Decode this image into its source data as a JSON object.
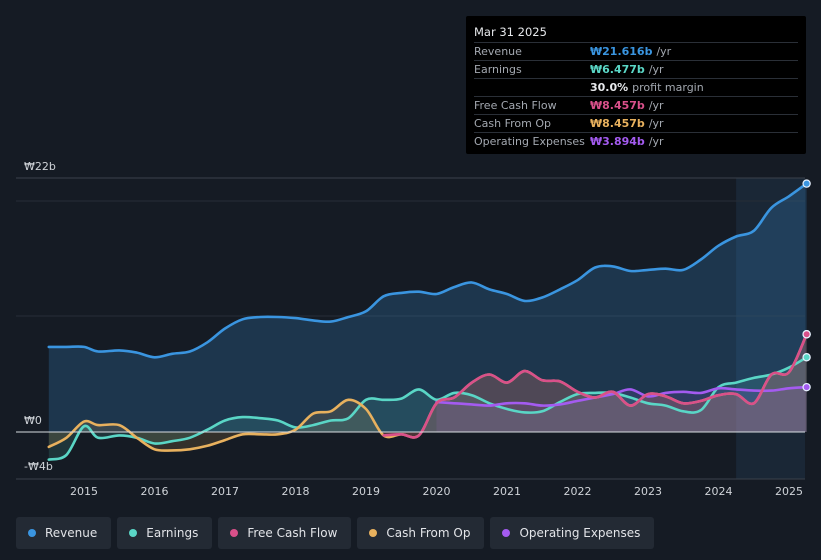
{
  "colors": {
    "revenue": "#3a95e0",
    "earnings": "#5ad6c6",
    "free_cash_flow": "#d9508a",
    "cash_from_op": "#e8b15e",
    "operating_expenses": "#a45bf0",
    "background": "#151b24",
    "grid": "#3a414b"
  },
  "tooltip": {
    "date": "Mar 31 2025",
    "revenue": {
      "label": "Revenue",
      "value": "₩21.616b",
      "unit": "/yr"
    },
    "earnings": {
      "label": "Earnings",
      "value": "₩6.477b",
      "unit": "/yr"
    },
    "margin": {
      "value": "30.0%",
      "text": "profit margin"
    },
    "fcf": {
      "label": "Free Cash Flow",
      "value": "₩8.457b",
      "unit": "/yr"
    },
    "cfo": {
      "label": "Cash From Op",
      "value": "₩8.457b",
      "unit": "/yr"
    },
    "opex": {
      "label": "Operating Expenses",
      "value": "₩3.894b",
      "unit": "/yr"
    }
  },
  "legend": [
    {
      "label": "Revenue",
      "color_key": "revenue",
      "name": "legend-revenue"
    },
    {
      "label": "Earnings",
      "color_key": "earnings",
      "name": "legend-earnings"
    },
    {
      "label": "Free Cash Flow",
      "color_key": "free_cash_flow",
      "name": "legend-free-cash-flow"
    },
    {
      "label": "Cash From Op",
      "color_key": "cash_from_op",
      "name": "legend-cash-from-op"
    },
    {
      "label": "Operating Expenses",
      "color_key": "operating_expenses",
      "name": "legend-operating-expenses"
    }
  ],
  "chart_data": {
    "type": "area",
    "title": "",
    "xlabel": "",
    "ylabel": "",
    "x_ticks": [
      "2015",
      "2016",
      "2017",
      "2018",
      "2019",
      "2020",
      "2021",
      "2022",
      "2023",
      "2024",
      "2025"
    ],
    "y_tick_labels": [
      {
        "label": "₩22b",
        "value": 22
      },
      {
        "label": "₩0",
        "value": 0
      },
      {
        "label": "-₩4b",
        "value": -4
      }
    ],
    "xlim": [
      2014.5,
      2025.25
    ],
    "ylim": [
      -4,
      22
    ],
    "forecast_start": 2024.25,
    "series": [
      {
        "name": "Revenue",
        "key": "revenue",
        "start": 2014.5,
        "points": [
          [
            2014.5,
            7.4
          ],
          [
            2014.75,
            7.4
          ],
          [
            2015.0,
            7.4
          ],
          [
            2015.2,
            7.0
          ],
          [
            2015.5,
            7.1
          ],
          [
            2015.75,
            6.9
          ],
          [
            2016.0,
            6.5
          ],
          [
            2016.25,
            6.8
          ],
          [
            2016.5,
            7.0
          ],
          [
            2016.75,
            7.8
          ],
          [
            2017.0,
            9.0
          ],
          [
            2017.25,
            9.8
          ],
          [
            2017.5,
            10.0
          ],
          [
            2017.75,
            10.0
          ],
          [
            2018.0,
            9.9
          ],
          [
            2018.25,
            9.7
          ],
          [
            2018.5,
            9.6
          ],
          [
            2018.75,
            10.0
          ],
          [
            2019.0,
            10.5
          ],
          [
            2019.25,
            11.8
          ],
          [
            2019.5,
            12.1
          ],
          [
            2019.75,
            12.2
          ],
          [
            2020.0,
            12.0
          ],
          [
            2020.25,
            12.6
          ],
          [
            2020.5,
            13.0
          ],
          [
            2020.75,
            12.4
          ],
          [
            2021.0,
            12.0
          ],
          [
            2021.25,
            11.4
          ],
          [
            2021.5,
            11.7
          ],
          [
            2021.75,
            12.4
          ],
          [
            2022.0,
            13.2
          ],
          [
            2022.25,
            14.3
          ],
          [
            2022.5,
            14.4
          ],
          [
            2022.75,
            14.0
          ],
          [
            2023.0,
            14.1
          ],
          [
            2023.25,
            14.2
          ],
          [
            2023.5,
            14.1
          ],
          [
            2023.75,
            15.0
          ],
          [
            2024.0,
            16.2
          ],
          [
            2024.25,
            17.0
          ],
          [
            2024.5,
            17.5
          ],
          [
            2024.75,
            19.5
          ],
          [
            2025.0,
            20.5
          ],
          [
            2025.25,
            21.6
          ]
        ]
      },
      {
        "name": "Earnings",
        "key": "earnings",
        "start": 2014.5,
        "points": [
          [
            2014.5,
            -2.4
          ],
          [
            2014.75,
            -2.0
          ],
          [
            2015.0,
            0.5
          ],
          [
            2015.2,
            -0.5
          ],
          [
            2015.5,
            -0.3
          ],
          [
            2015.75,
            -0.5
          ],
          [
            2016.0,
            -1.0
          ],
          [
            2016.25,
            -0.8
          ],
          [
            2016.5,
            -0.5
          ],
          [
            2016.75,
            0.2
          ],
          [
            2017.0,
            1.0
          ],
          [
            2017.25,
            1.3
          ],
          [
            2017.5,
            1.2
          ],
          [
            2017.75,
            1.0
          ],
          [
            2018.0,
            0.4
          ],
          [
            2018.25,
            0.6
          ],
          [
            2018.5,
            1.0
          ],
          [
            2018.75,
            1.2
          ],
          [
            2019.0,
            2.8
          ],
          [
            2019.25,
            2.8
          ],
          [
            2019.5,
            2.9
          ],
          [
            2019.75,
            3.7
          ],
          [
            2020.0,
            2.8
          ],
          [
            2020.25,
            3.4
          ],
          [
            2020.5,
            3.2
          ],
          [
            2020.75,
            2.5
          ],
          [
            2021.0,
            2.0
          ],
          [
            2021.25,
            1.7
          ],
          [
            2021.5,
            1.8
          ],
          [
            2021.75,
            2.6
          ],
          [
            2022.0,
            3.3
          ],
          [
            2022.25,
            3.4
          ],
          [
            2022.5,
            3.4
          ],
          [
            2022.75,
            3.0
          ],
          [
            2023.0,
            2.5
          ],
          [
            2023.25,
            2.3
          ],
          [
            2023.5,
            1.8
          ],
          [
            2023.75,
            1.9
          ],
          [
            2024.0,
            3.9
          ],
          [
            2024.25,
            4.3
          ],
          [
            2024.5,
            4.7
          ],
          [
            2024.75,
            5.0
          ],
          [
            2025.0,
            5.6
          ],
          [
            2025.25,
            6.5
          ]
        ]
      },
      {
        "name": "Free Cash Flow",
        "key": "free_cash_flow",
        "start": 2019.25,
        "points": [
          [
            2019.25,
            -0.3
          ],
          [
            2019.5,
            -0.2
          ],
          [
            2019.75,
            -0.3
          ],
          [
            2020.0,
            2.5
          ],
          [
            2020.25,
            3.0
          ],
          [
            2020.5,
            4.3
          ],
          [
            2020.75,
            5.0
          ],
          [
            2021.0,
            4.3
          ],
          [
            2021.25,
            5.3
          ],
          [
            2021.5,
            4.5
          ],
          [
            2021.75,
            4.4
          ],
          [
            2022.0,
            3.5
          ],
          [
            2022.25,
            3.0
          ],
          [
            2022.5,
            3.5
          ],
          [
            2022.75,
            2.3
          ],
          [
            2023.0,
            3.3
          ],
          [
            2023.25,
            3.1
          ],
          [
            2023.5,
            2.5
          ],
          [
            2023.75,
            2.7
          ],
          [
            2024.0,
            3.2
          ],
          [
            2024.25,
            3.3
          ],
          [
            2024.5,
            2.5
          ],
          [
            2024.75,
            5.0
          ],
          [
            2025.0,
            5.2
          ],
          [
            2025.25,
            8.5
          ]
        ]
      },
      {
        "name": "Cash From Op",
        "key": "cash_from_op",
        "start": 2014.5,
        "points": [
          [
            2014.5,
            -1.3
          ],
          [
            2014.75,
            -0.5
          ],
          [
            2015.0,
            0.9
          ],
          [
            2015.2,
            0.6
          ],
          [
            2015.5,
            0.6
          ],
          [
            2015.75,
            -0.5
          ],
          [
            2016.0,
            -1.5
          ],
          [
            2016.25,
            -1.6
          ],
          [
            2016.5,
            -1.5
          ],
          [
            2016.75,
            -1.2
          ],
          [
            2017.0,
            -0.7
          ],
          [
            2017.25,
            -0.2
          ],
          [
            2017.5,
            -0.2
          ],
          [
            2017.75,
            -0.2
          ],
          [
            2018.0,
            0.2
          ],
          [
            2018.25,
            1.6
          ],
          [
            2018.5,
            1.8
          ],
          [
            2018.75,
            2.8
          ],
          [
            2019.0,
            2.0
          ],
          [
            2019.25,
            -0.3
          ],
          [
            2019.5,
            -0.2
          ],
          [
            2019.75,
            -0.3
          ],
          [
            2020.0,
            2.5
          ],
          [
            2020.25,
            3.0
          ],
          [
            2020.5,
            4.3
          ],
          [
            2020.75,
            5.0
          ],
          [
            2021.0,
            4.3
          ],
          [
            2021.25,
            5.3
          ],
          [
            2021.5,
            4.5
          ],
          [
            2021.75,
            4.4
          ],
          [
            2022.0,
            3.5
          ],
          [
            2022.25,
            3.0
          ],
          [
            2022.5,
            3.5
          ],
          [
            2022.75,
            2.3
          ],
          [
            2023.0,
            3.3
          ],
          [
            2023.25,
            3.1
          ],
          [
            2023.5,
            2.5
          ],
          [
            2023.75,
            2.7
          ],
          [
            2024.0,
            3.2
          ],
          [
            2024.25,
            3.3
          ],
          [
            2024.5,
            2.5
          ],
          [
            2024.75,
            5.0
          ],
          [
            2025.0,
            5.2
          ],
          [
            2025.25,
            8.5
          ]
        ]
      },
      {
        "name": "Operating Expenses",
        "key": "operating_expenses",
        "start": 2020.0,
        "points": [
          [
            2020.0,
            2.6
          ],
          [
            2020.25,
            2.5
          ],
          [
            2020.5,
            2.4
          ],
          [
            2020.75,
            2.3
          ],
          [
            2021.0,
            2.5
          ],
          [
            2021.25,
            2.5
          ],
          [
            2021.5,
            2.3
          ],
          [
            2021.75,
            2.4
          ],
          [
            2022.0,
            2.7
          ],
          [
            2022.25,
            3.0
          ],
          [
            2022.5,
            3.3
          ],
          [
            2022.75,
            3.7
          ],
          [
            2023.0,
            3.1
          ],
          [
            2023.25,
            3.4
          ],
          [
            2023.5,
            3.5
          ],
          [
            2023.75,
            3.4
          ],
          [
            2024.0,
            3.8
          ],
          [
            2024.25,
            3.7
          ],
          [
            2024.5,
            3.6
          ],
          [
            2024.75,
            3.6
          ],
          [
            2025.0,
            3.8
          ],
          [
            2025.25,
            3.9
          ]
        ]
      }
    ]
  }
}
